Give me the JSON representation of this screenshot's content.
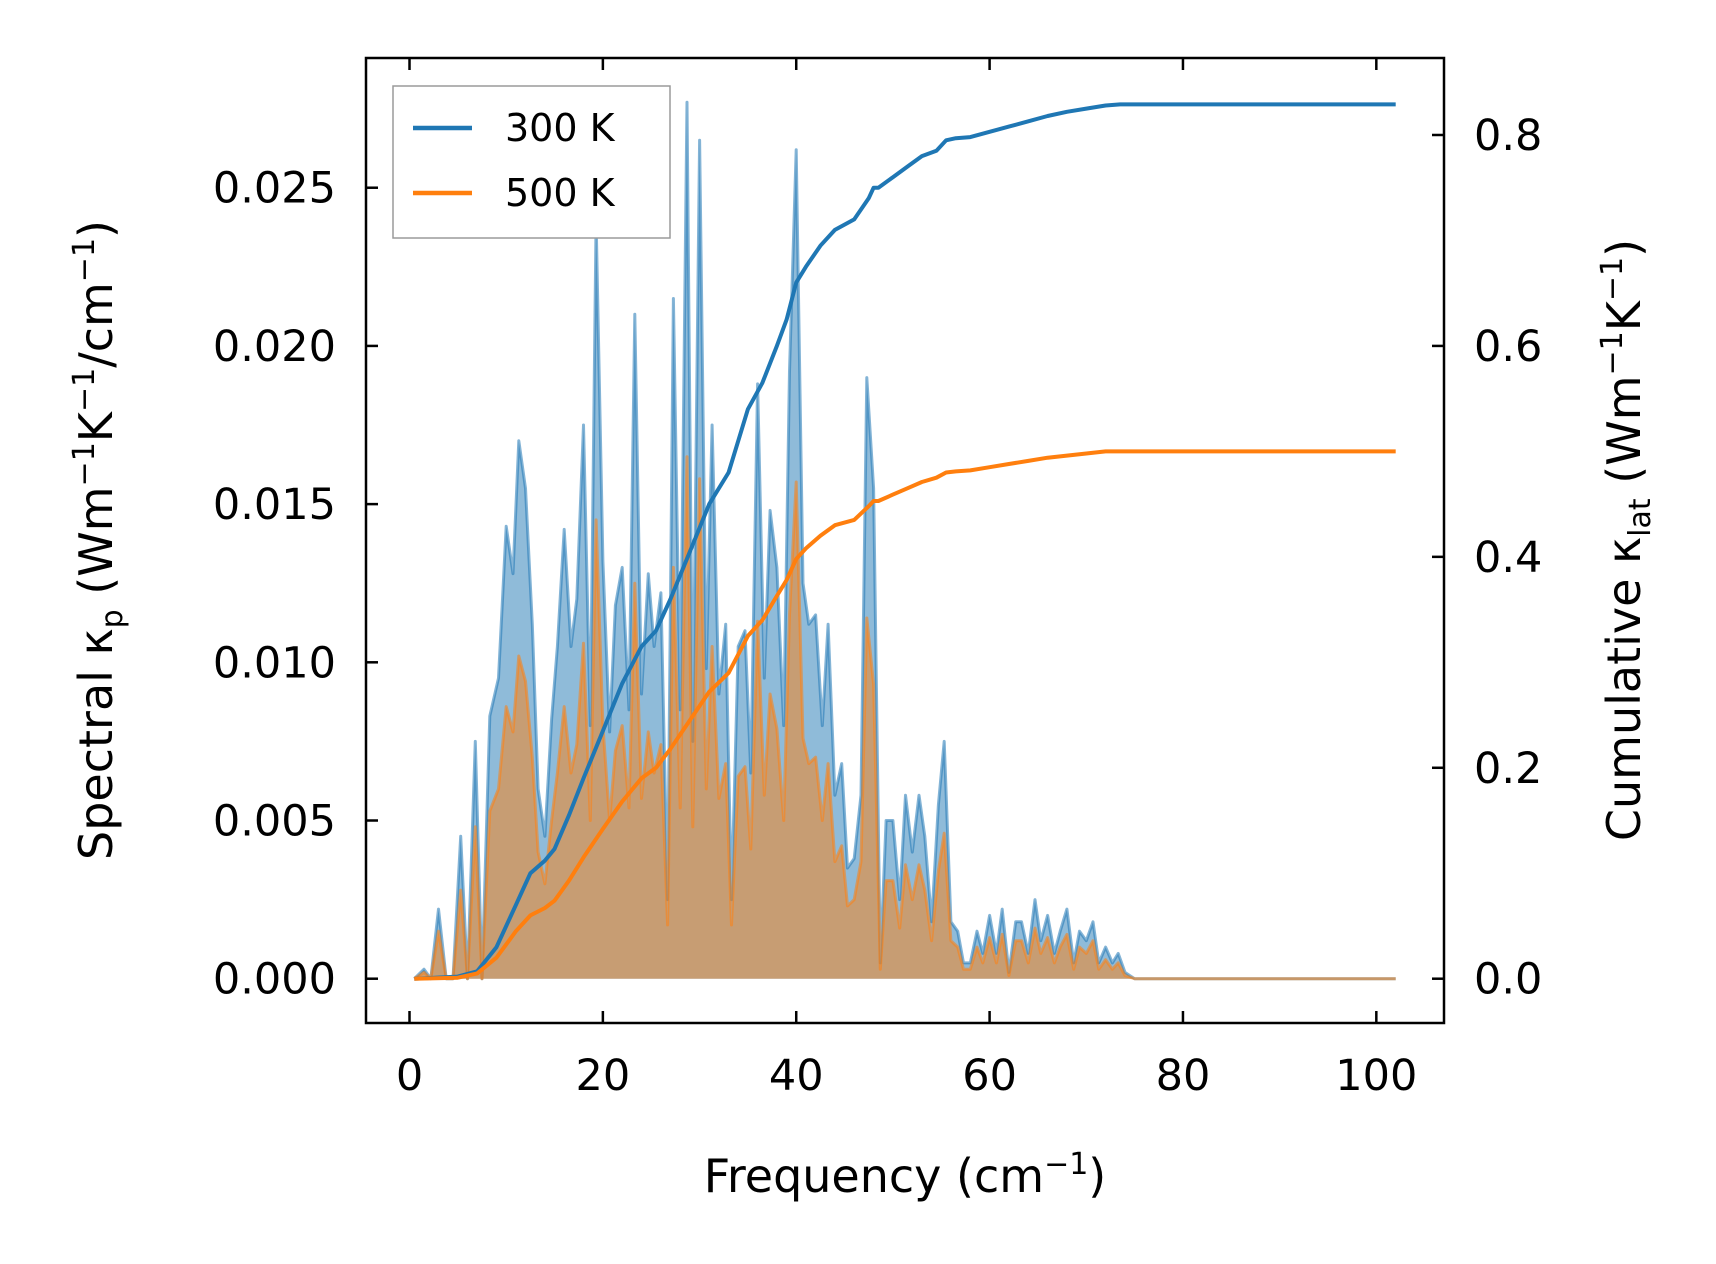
{
  "chart_data": {
    "type": "area",
    "title": "",
    "xlabel": "Frequency (cm",
    "xlabel_sup": "−1",
    "xlabel_tail": ")",
    "ylabel_left": {
      "prefix": "Spectral κ",
      "sub": "p",
      "mid1": " (Wm",
      "sup1": "−1",
      "mid2": "K",
      "sup2": "−1",
      "mid3": "/cm",
      "sup3": "−1",
      "tail": ")"
    },
    "ylabel_right": {
      "prefix": "Cumulative κ",
      "sub": "lat",
      "mid1": " (Wm",
      "sup1": "−1",
      "mid2": "K",
      "sup2": "−1",
      "tail": ")"
    },
    "xlim": [
      -4.5,
      107
    ],
    "ylim_left": [
      -0.0014,
      0.0291
    ],
    "ylim_right": [
      -0.042,
      0.873
    ],
    "xticks": [
      0,
      20,
      40,
      60,
      80,
      100
    ],
    "xtick_labels": [
      "0",
      "20",
      "40",
      "60",
      "80",
      "100"
    ],
    "yticks_left": [
      0.0,
      0.005,
      0.01,
      0.015,
      0.02,
      0.025
    ],
    "ytick_labels_left": [
      "0.000",
      "0.005",
      "0.010",
      "0.015",
      "0.020",
      "0.025"
    ],
    "yticks_right": [
      0.0,
      0.2,
      0.4,
      0.6,
      0.8
    ],
    "ytick_labels_right": [
      "0.0",
      "0.2",
      "0.4",
      "0.6",
      "0.8"
    ],
    "legend": {
      "position": "top-left",
      "entries": [
        {
          "label": "300 K",
          "color": "#1f77b4"
        },
        {
          "label": "500 K",
          "color": "#ff7f0e"
        }
      ]
    },
    "series": [
      {
        "name": "300 K",
        "color": "#1f77b4",
        "spectral": {
          "x": [
            0.5,
            1.5,
            2.2,
            3.0,
            3.8,
            4.5,
            5.3,
            6.0,
            6.8,
            7.5,
            8.3,
            9.2,
            10.0,
            10.7,
            11.3,
            12.0,
            12.7,
            13.3,
            14.0,
            14.7,
            15.3,
            16.0,
            16.7,
            17.3,
            18.0,
            18.7,
            19.3,
            20.0,
            20.7,
            21.3,
            22.0,
            22.7,
            23.3,
            24.0,
            24.7,
            25.3,
            26.0,
            26.7,
            27.3,
            28.0,
            28.7,
            29.3,
            30.0,
            30.7,
            31.3,
            32.0,
            32.7,
            33.3,
            34.0,
            34.7,
            35.3,
            36.0,
            36.7,
            37.3,
            38.0,
            38.7,
            39.3,
            40.0,
            40.7,
            41.3,
            42.0,
            42.7,
            43.3,
            44.0,
            44.7,
            45.3,
            46.0,
            46.7,
            47.3,
            48.0,
            48.7,
            49.3,
            50.0,
            50.7,
            51.3,
            52.0,
            52.7,
            53.3,
            54.0,
            54.7,
            55.3,
            56.0,
            56.7,
            57.3,
            58.0,
            58.7,
            59.3,
            60.0,
            60.7,
            61.3,
            62.0,
            62.7,
            63.3,
            64.0,
            64.7,
            65.3,
            66.0,
            66.7,
            67.3,
            68.0,
            68.7,
            69.3,
            70.0,
            70.7,
            71.3,
            72.0,
            72.7,
            73.3,
            74.0,
            75.0,
            80.0,
            90.0,
            102.0
          ],
          "y": [
            0.0,
            0.0003,
            0.0,
            0.0022,
            0.0,
            0.0,
            0.0045,
            0.0,
            0.0075,
            0.0,
            0.0083,
            0.0095,
            0.0143,
            0.0128,
            0.017,
            0.0155,
            0.0112,
            0.006,
            0.0045,
            0.0082,
            0.0105,
            0.0142,
            0.0105,
            0.012,
            0.0175,
            0.008,
            0.024,
            0.0132,
            0.0078,
            0.0118,
            0.013,
            0.0085,
            0.021,
            0.009,
            0.0128,
            0.0105,
            0.0122,
            0.0025,
            0.0215,
            0.0085,
            0.0277,
            0.0075,
            0.0265,
            0.0098,
            0.0175,
            0.009,
            0.0112,
            0.0025,
            0.0105,
            0.011,
            0.0065,
            0.0188,
            0.0095,
            0.0148,
            0.013,
            0.008,
            0.0192,
            0.0262,
            0.0125,
            0.0112,
            0.0115,
            0.008,
            0.0112,
            0.0058,
            0.0068,
            0.0035,
            0.0038,
            0.0058,
            0.019,
            0.0155,
            0.0005,
            0.005,
            0.005,
            0.0025,
            0.0058,
            0.004,
            0.0058,
            0.0045,
            0.0018,
            0.0055,
            0.0075,
            0.0018,
            0.0015,
            0.0005,
            0.0005,
            0.0015,
            0.0008,
            0.002,
            0.0008,
            0.0022,
            0.0002,
            0.0018,
            0.0018,
            0.0008,
            0.0025,
            0.0012,
            0.002,
            0.0008,
            0.0015,
            0.0022,
            0.0005,
            0.0015,
            0.0012,
            0.0018,
            0.0005,
            0.001,
            0.0005,
            0.0008,
            0.0002,
            0.0,
            0.0,
            0.0,
            0.0
          ]
        },
        "cumulative": {
          "x": [
            0.5,
            5.0,
            7.0,
            9.0,
            11.0,
            12.5,
            14.0,
            15.0,
            16.5,
            18.0,
            20.0,
            22.0,
            24.0,
            25.5,
            27.0,
            29.0,
            31.0,
            33.0,
            35.0,
            36.5,
            38.0,
            39.0,
            40.0,
            41.0,
            42.5,
            44.0,
            46.0,
            47.5,
            48.0,
            48.5,
            50.0,
            51.5,
            53.0,
            54.5,
            55.5,
            56.5,
            58.0,
            60.0,
            62.0,
            64.0,
            66.0,
            68.0,
            70.0,
            72.0,
            73.5,
            76.0,
            80.0,
            90.0,
            102.0
          ],
          "y": [
            0.0,
            0.002,
            0.007,
            0.03,
            0.07,
            0.1,
            0.112,
            0.123,
            0.155,
            0.19,
            0.235,
            0.28,
            0.315,
            0.33,
            0.36,
            0.405,
            0.45,
            0.48,
            0.54,
            0.565,
            0.6,
            0.625,
            0.66,
            0.675,
            0.695,
            0.71,
            0.72,
            0.74,
            0.75,
            0.75,
            0.76,
            0.77,
            0.78,
            0.785,
            0.795,
            0.797,
            0.798,
            0.803,
            0.808,
            0.813,
            0.818,
            0.822,
            0.825,
            0.828,
            0.829,
            0.829,
            0.829,
            0.829,
            0.829
          ]
        }
      },
      {
        "name": "500 K",
        "color": "#ff7f0e",
        "spectral": {
          "x": [
            0.5,
            1.5,
            2.2,
            3.0,
            3.8,
            4.5,
            5.3,
            6.0,
            6.8,
            7.5,
            8.3,
            9.2,
            10.0,
            10.7,
            11.3,
            12.0,
            12.7,
            13.3,
            14.0,
            14.7,
            15.3,
            16.0,
            16.7,
            17.3,
            18.0,
            18.7,
            19.3,
            20.0,
            20.7,
            21.3,
            22.0,
            22.7,
            23.3,
            24.0,
            24.7,
            25.3,
            26.0,
            26.7,
            27.3,
            28.0,
            28.7,
            29.3,
            30.0,
            30.7,
            31.3,
            32.0,
            32.7,
            33.3,
            34.0,
            34.7,
            35.3,
            36.0,
            36.7,
            37.3,
            38.0,
            38.7,
            39.3,
            40.0,
            40.7,
            41.3,
            42.0,
            42.7,
            43.3,
            44.0,
            44.7,
            45.3,
            46.0,
            46.7,
            47.3,
            48.0,
            48.7,
            49.3,
            50.0,
            50.7,
            51.3,
            52.0,
            52.7,
            53.3,
            54.0,
            54.7,
            55.3,
            56.0,
            56.7,
            57.3,
            58.0,
            58.7,
            59.3,
            60.0,
            60.7,
            61.3,
            62.0,
            62.7,
            63.3,
            64.0,
            64.7,
            65.3,
            66.0,
            66.7,
            67.3,
            68.0,
            68.7,
            69.3,
            70.0,
            70.7,
            71.3,
            72.0,
            72.7,
            73.3,
            74.0,
            75.0,
            80.0,
            90.0,
            102.0
          ],
          "y": [
            0.0,
            0.0002,
            0.0,
            0.0015,
            0.0,
            0.0,
            0.0028,
            0.0,
            0.0048,
            0.0,
            0.0053,
            0.006,
            0.0086,
            0.0078,
            0.0102,
            0.0094,
            0.007,
            0.004,
            0.003,
            0.005,
            0.0065,
            0.0086,
            0.0065,
            0.0074,
            0.0106,
            0.005,
            0.0145,
            0.008,
            0.005,
            0.0072,
            0.008,
            0.0054,
            0.0125,
            0.0057,
            0.0078,
            0.0065,
            0.0074,
            0.0017,
            0.013,
            0.0054,
            0.0165,
            0.0048,
            0.0158,
            0.006,
            0.0105,
            0.0057,
            0.0068,
            0.0017,
            0.0064,
            0.0067,
            0.0041,
            0.0113,
            0.0058,
            0.009,
            0.0079,
            0.005,
            0.0115,
            0.0157,
            0.0076,
            0.0068,
            0.007,
            0.005,
            0.0068,
            0.0037,
            0.0042,
            0.0023,
            0.0025,
            0.0037,
            0.0114,
            0.0093,
            0.0003,
            0.0031,
            0.0031,
            0.0016,
            0.0036,
            0.0025,
            0.0036,
            0.0028,
            0.0012,
            0.0034,
            0.0046,
            0.0012,
            0.001,
            0.0003,
            0.0003,
            0.001,
            0.0005,
            0.0013,
            0.0005,
            0.0014,
            0.0001,
            0.0012,
            0.0012,
            0.0005,
            0.0016,
            0.0008,
            0.0013,
            0.0005,
            0.001,
            0.0014,
            0.0003,
            0.001,
            0.0008,
            0.0012,
            0.0003,
            0.0006,
            0.0003,
            0.0005,
            0.0001,
            0.0,
            0.0,
            0.0,
            0.0
          ]
        },
        "cumulative": {
          "x": [
            0.5,
            5.0,
            7.0,
            9.0,
            11.0,
            12.5,
            14.0,
            15.0,
            16.5,
            18.0,
            20.0,
            22.0,
            24.0,
            25.5,
            27.0,
            29.0,
            31.0,
            33.0,
            35.0,
            36.5,
            38.0,
            39.0,
            40.0,
            41.0,
            42.5,
            44.0,
            46.0,
            47.5,
            48.0,
            48.5,
            50.0,
            51.5,
            53.0,
            54.5,
            55.5,
            56.5,
            58.0,
            60.0,
            62.0,
            64.0,
            66.0,
            68.0,
            70.0,
            72.0,
            73.5,
            76.0,
            80.0,
            90.0,
            102.0
          ],
          "y": [
            0.0,
            0.001,
            0.005,
            0.02,
            0.045,
            0.06,
            0.067,
            0.074,
            0.093,
            0.115,
            0.142,
            0.168,
            0.19,
            0.2,
            0.218,
            0.245,
            0.272,
            0.29,
            0.325,
            0.34,
            0.363,
            0.378,
            0.398,
            0.408,
            0.42,
            0.43,
            0.435,
            0.448,
            0.453,
            0.453,
            0.459,
            0.465,
            0.471,
            0.475,
            0.48,
            0.481,
            0.482,
            0.485,
            0.488,
            0.491,
            0.494,
            0.496,
            0.498,
            0.5,
            0.5,
            0.5,
            0.5,
            0.5,
            0.5
          ]
        }
      }
    ]
  }
}
